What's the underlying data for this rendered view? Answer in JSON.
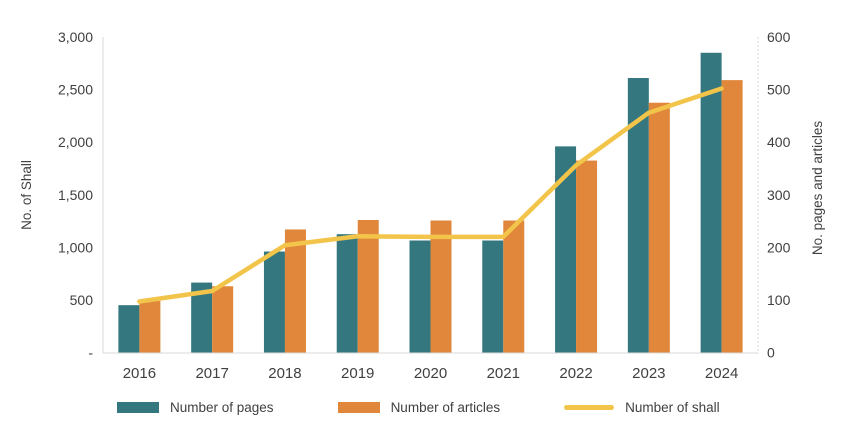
{
  "chart_data": {
    "type": "combo-bar-line",
    "title": "",
    "categories": [
      "2016",
      "2017",
      "2018",
      "2019",
      "2020",
      "2021",
      "2022",
      "2023",
      "2024"
    ],
    "series": [
      {
        "name": "Number of pages",
        "type": "bar",
        "axis": "right",
        "color": "#35777F",
        "values": [
          90,
          133,
          192,
          225,
          213,
          213,
          392,
          522,
          570
        ]
      },
      {
        "name": "Number of articles",
        "type": "bar",
        "axis": "right",
        "color": "#E0873B",
        "values": [
          98,
          126,
          234,
          252,
          251,
          251,
          365,
          475,
          518
        ]
      },
      {
        "name": "Number of shall",
        "type": "line",
        "axis": "left",
        "color": "#F2C449",
        "values": [
          485,
          585,
          1020,
          1105,
          1100,
          1100,
          1780,
          2280,
          2510
        ]
      }
    ],
    "left_axis": {
      "label": "No. of Shall",
      "min": 0,
      "max": 3000,
      "tick_step": 500,
      "ticks": [
        {
          "label": "-",
          "value": 0
        },
        {
          "label": "500",
          "value": 500
        },
        {
          "label": "1,000",
          "value": 1000
        },
        {
          "label": "1,500",
          "value": 1500
        },
        {
          "label": "2,000",
          "value": 2000
        },
        {
          "label": "2,500",
          "value": 2500
        },
        {
          "label": "3,000",
          "value": 3000
        }
      ]
    },
    "right_axis": {
      "label": "No. pages and articles",
      "min": 0,
      "max": 600,
      "tick_step": 100,
      "ticks": [
        {
          "label": "0",
          "value": 0
        },
        {
          "label": "100",
          "value": 100
        },
        {
          "label": "200",
          "value": 200
        },
        {
          "label": "300",
          "value": 300
        },
        {
          "label": "400",
          "value": 400
        },
        {
          "label": "500",
          "value": 500
        },
        {
          "label": "600",
          "value": 600
        }
      ]
    },
    "grid": "off",
    "legend_position": "bottom"
  },
  "colors": {
    "background": "#ffffff",
    "text": "#404040",
    "axis_line": "#D9D9D9",
    "bar_pages": "#35777F",
    "bar_articles": "#E0873B",
    "line_shall": "#F2C449"
  }
}
